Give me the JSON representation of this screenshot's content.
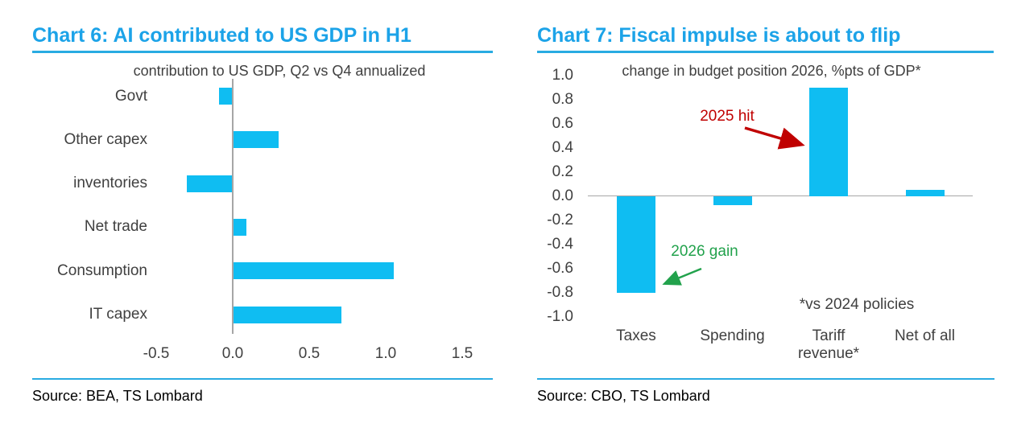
{
  "colors": {
    "title": "#1CA3E8",
    "rule": "#29ABE2",
    "bar": "#0FBDF2",
    "axis": "#A6A6A6",
    "label": "#404040",
    "source_text": "#000000",
    "annotation_red": "#C00000",
    "annotation_green": "#22A24C"
  },
  "chart_data": [
    {
      "type": "bar",
      "orientation": "horizontal",
      "title": "Chart 6: AI contributed to US GDP in H1",
      "subtitle": "contribution to US GDP, Q2 vs Q4 annualized",
      "source": "Source: BEA, TS Lombard",
      "categories": [
        "Govt",
        "Other capex",
        "inventories",
        "Net trade",
        "Consumption",
        "IT capex"
      ],
      "values": [
        -0.09,
        0.3,
        -0.3,
        0.09,
        1.05,
        0.71
      ],
      "xlabel": "",
      "ylabel": "",
      "xlim": [
        -0.5,
        1.5
      ],
      "xticks": [
        -0.5,
        0.0,
        0.5,
        1.0,
        1.5
      ],
      "xtick_labels": [
        "-0.5",
        "0.0",
        "0.5",
        "1.0",
        "1.5"
      ],
      "grid": false,
      "legend": "none",
      "bar_color": "#0FBDF2"
    },
    {
      "type": "bar",
      "orientation": "vertical",
      "title": "Chart 7: Fiscal impulse is about to flip",
      "subtitle": "change in budget position 2026, %pts of GDP*",
      "source": "Source: CBO, TS Lombard",
      "categories": [
        "Taxes",
        "Spending",
        "Tariff\nrevenue*",
        "Net of all"
      ],
      "values": [
        -0.8,
        -0.07,
        0.9,
        0.05
      ],
      "xlabel": "",
      "ylabel": "",
      "ylim": [
        -1.0,
        1.0
      ],
      "yticks": [
        1.0,
        0.8,
        0.6,
        0.4,
        0.2,
        0.0,
        -0.2,
        -0.4,
        -0.6,
        -0.8,
        -1.0
      ],
      "ytick_labels": [
        "1.0",
        "0.8",
        "0.6",
        "0.4",
        "0.2",
        "0.0",
        "-0.2",
        "-0.4",
        "-0.6",
        "-0.8",
        "-1.0"
      ],
      "grid": false,
      "legend": "none",
      "bar_color": "#0FBDF2",
      "annotations": [
        {
          "text": "2025 hit",
          "color": "#C00000",
          "target": "Tariff revenue* bar"
        },
        {
          "text": "2026 gain",
          "color": "#22A24C",
          "target": "Taxes bar"
        },
        {
          "text": "*vs 2024 policies",
          "color": "#404040",
          "target": "footnote"
        }
      ]
    }
  ]
}
